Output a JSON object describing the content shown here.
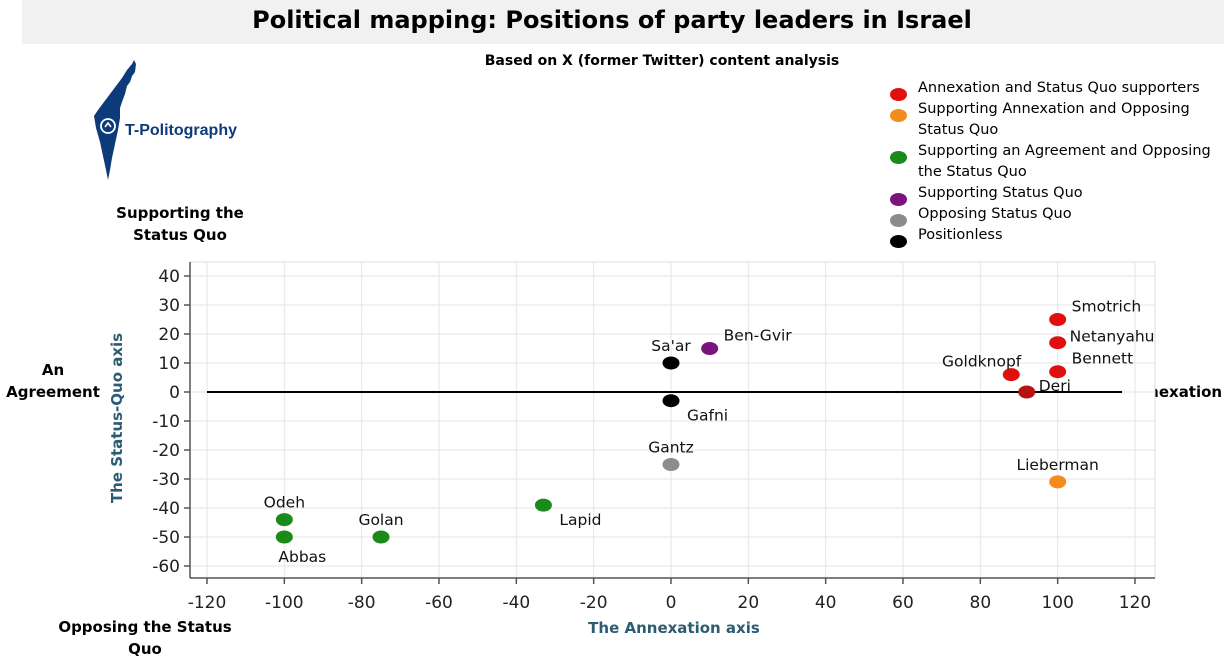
{
  "header": {
    "title": "Political mapping: Positions of party leaders in Israel",
    "subtitle": "Based on X (former Twitter) content analysis"
  },
  "logo": {
    "text": "T-Politography",
    "color": "#0d3a78"
  },
  "quadrant_labels": {
    "top": [
      "Supporting the",
      "Status Quo"
    ],
    "left": [
      "An",
      "Agreement"
    ],
    "right": "Annexation",
    "bottom": [
      "Opposing the Status",
      "Quo"
    ]
  },
  "legend": [
    {
      "label": "Annexation and Status Quo supporters",
      "color": "#e01010"
    },
    {
      "label": "Supporting Annexation and Opposing Status Quo",
      "color": "#f28c1c"
    },
    {
      "label": "Supporting an Agreement and Opposing the Status Quo",
      "color": "#1a8a1a"
    },
    {
      "label": "Supporting Status Quo",
      "color": "#7a1280"
    },
    {
      "label": "Opposing Status Quo",
      "color": "#8c8c8c"
    },
    {
      "label": "Positionless",
      "color": "#000000"
    }
  ],
  "chart_data": {
    "type": "scatter",
    "xlabel": "The Annexation axis",
    "ylabel": "The Status-Quo axis",
    "xlim": [
      -120,
      120
    ],
    "ylim": [
      -60,
      40
    ],
    "xticks": [
      -120,
      -100,
      -80,
      -60,
      -40,
      -20,
      0,
      20,
      40,
      60,
      80,
      100,
      120
    ],
    "yticks": [
      40,
      30,
      20,
      10,
      0,
      -10,
      -20,
      -30,
      -40,
      -50,
      -60
    ],
    "grid": true,
    "reference_line_y": 0,
    "points": [
      {
        "name": "Smotrich",
        "x": 100,
        "y": 25,
        "color": "#e01010",
        "label_pos": "upper-right"
      },
      {
        "name": "Netanyahu",
        "x": 100,
        "y": 17,
        "color": "#e01010",
        "label_pos": "right"
      },
      {
        "name": "Bennett",
        "x": 100,
        "y": 7,
        "color": "#e01010",
        "label_pos": "upper-right"
      },
      {
        "name": "Goldknopf",
        "x": 88,
        "y": 6,
        "color": "#e01010",
        "label_pos": "upper-left"
      },
      {
        "name": "Deri",
        "x": 92,
        "y": 0,
        "color": "#b81212",
        "label_pos": "right"
      },
      {
        "name": "Ben-Gvir",
        "x": 10,
        "y": 15,
        "color": "#7a1280",
        "label_pos": "upper-right"
      },
      {
        "name": "Sa'ar",
        "x": 0,
        "y": 10,
        "color": "#000000",
        "label_pos": "above"
      },
      {
        "name": "Gafni",
        "x": 0,
        "y": -3,
        "color": "#000000",
        "label_pos": "lower-right"
      },
      {
        "name": "Gantz",
        "x": 0,
        "y": -25,
        "color": "#8c8c8c",
        "label_pos": "above"
      },
      {
        "name": "Lieberman",
        "x": 100,
        "y": -31,
        "color": "#f28c1c",
        "label_pos": "above"
      },
      {
        "name": "Lapid",
        "x": -33,
        "y": -39,
        "color": "#1a8a1a",
        "label_pos": "lower-right"
      },
      {
        "name": "Golan",
        "x": -75,
        "y": -50,
        "color": "#1a8a1a",
        "label_pos": "above"
      },
      {
        "name": "Odeh",
        "x": -100,
        "y": -44,
        "color": "#1a8a1a",
        "label_pos": "above"
      },
      {
        "name": "Abbas",
        "x": -100,
        "y": -50,
        "color": "#1a8a1a",
        "label_pos": "below"
      }
    ]
  }
}
